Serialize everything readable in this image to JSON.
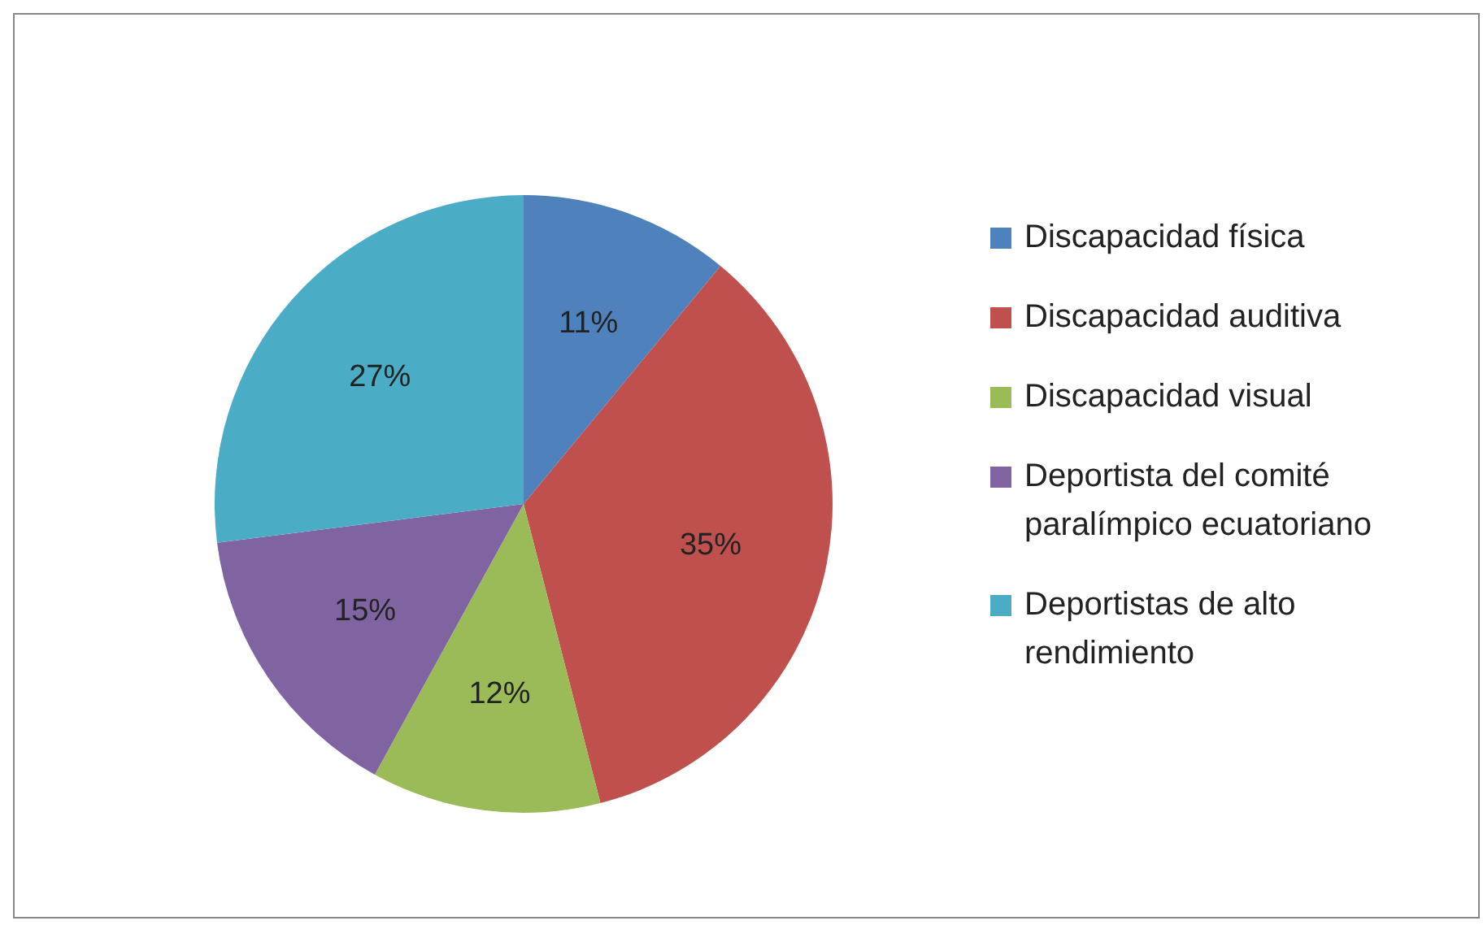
{
  "chart_data": {
    "type": "pie",
    "categories": [
      "Discapacidad física",
      "Discapacidad auditiva",
      "Discapacidad visual",
      "Deportista del comité paralímpico ecuatoriano",
      "Deportistas de alto rendimiento"
    ],
    "values": [
      11,
      35,
      12,
      15,
      27
    ],
    "colors": [
      "#4f81bd",
      "#c0504d",
      "#9bbb59",
      "#8064a2",
      "#4bacc6"
    ],
    "value_labels": [
      "11%",
      "35%",
      "12%",
      "15%",
      "27%"
    ],
    "legend": "right"
  }
}
